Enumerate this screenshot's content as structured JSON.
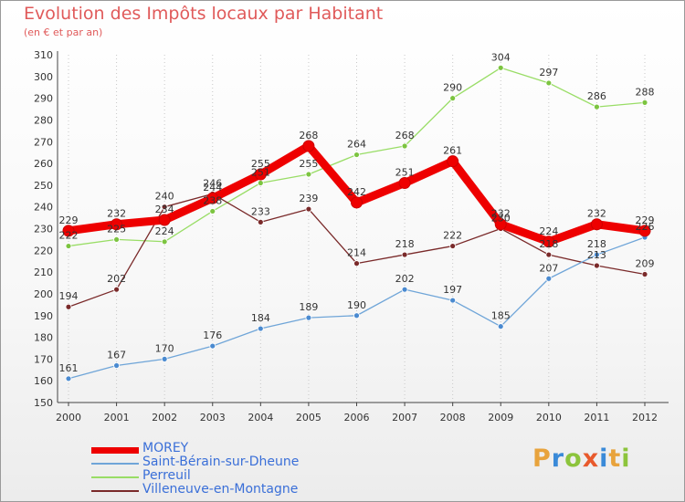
{
  "title": "Evolution des Impôts locaux par Habitant",
  "subtitle": "(en € et par an)",
  "logo": {
    "letters": [
      "P",
      "r",
      "o",
      "x",
      "i",
      "t",
      "i"
    ],
    "colors": [
      "#e8a33c",
      "#3a8ad8",
      "#8cc43c",
      "#e85a2c",
      "#3a8ad8",
      "#e8a33c",
      "#8cc43c"
    ]
  },
  "chart_data": {
    "type": "line",
    "title": "Evolution des Impôts locaux par Habitant",
    "subtitle": "(en € et par an)",
    "xlabel": "",
    "ylabel": "",
    "ylim": [
      150,
      310
    ],
    "yticks": [
      150,
      160,
      170,
      180,
      190,
      200,
      210,
      220,
      230,
      240,
      250,
      260,
      270,
      280,
      290,
      300,
      310
    ],
    "grid": "vertical dotted",
    "legend_position": "bottom-left",
    "x": [
      "2000",
      "2001",
      "2002",
      "2003",
      "2004",
      "2005",
      "2006",
      "2007",
      "2008",
      "2009",
      "2010",
      "2011",
      "2012"
    ],
    "series": [
      {
        "name": "Perreuil",
        "color": "#99dd66",
        "dot": "#7cc440",
        "width": 1.3,
        "values": [
          222,
          225,
          224,
          238,
          251,
          255,
          264,
          268,
          290,
          304,
          297,
          286,
          288
        ]
      },
      {
        "name": "Villeneuve-en-Montagne",
        "color": "#7a2a2a",
        "dot": "#7a2a2a",
        "width": 1.3,
        "values": [
          194,
          202,
          240,
          246,
          233,
          239,
          214,
          218,
          222,
          230,
          218,
          213,
          209
        ]
      },
      {
        "name": "Saint-Bérain-sur-Dheune",
        "color": "#6fa5d8",
        "dot": "#4a8ad0",
        "width": 1.3,
        "values": [
          161,
          167,
          170,
          176,
          184,
          189,
          190,
          202,
          197,
          185,
          207,
          218,
          226
        ]
      },
      {
        "name": "MOREY",
        "color": "#ee0000",
        "dot": "#ee0000",
        "width": 9,
        "values": [
          229,
          232,
          234,
          244,
          255,
          268,
          242,
          251,
          261,
          232,
          224,
          232,
          229
        ]
      }
    ],
    "legend": [
      "MOREY",
      "Saint-Bérain-sur-Dheune",
      "Perreuil",
      "Villeneuve-en-Montagne"
    ]
  }
}
